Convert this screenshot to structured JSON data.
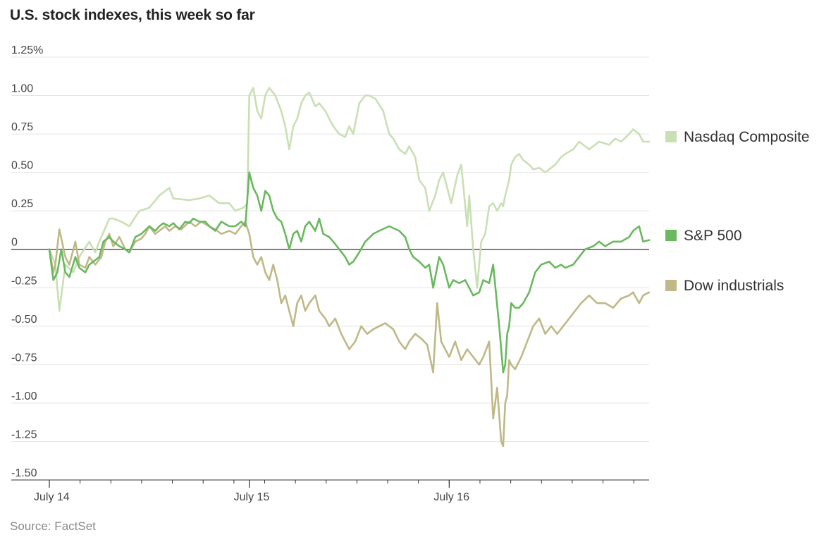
{
  "title": "U.S. stock indexes, this week so far",
  "source": "Source: FactSet",
  "colors": {
    "nasdaq": "#c9dfb4",
    "sp500": "#6ab85f",
    "dow": "#bfb887",
    "grid": "#e4e4e4",
    "zero": "#333333",
    "axis": "#333333"
  },
  "chart_data": {
    "type": "line",
    "title": "U.S. stock indexes, this week so far",
    "xlabel": "",
    "ylabel": "",
    "ylim": [
      -1.5,
      1.25
    ],
    "xlim": [
      0,
      3
    ],
    "yticks": [
      1.25,
      1.0,
      0.75,
      0.5,
      0.25,
      0,
      -0.25,
      -0.5,
      -0.75,
      -1.0,
      -1.25,
      -1.5
    ],
    "ytick_labels": [
      "1.25%",
      "1.00",
      "0.75",
      "0.50",
      "0.25",
      "0",
      "-0.25",
      "-0.50",
      "-0.75",
      "-1.00",
      "-1.25",
      "-1.50"
    ],
    "xtick_labels": [
      {
        "x": 0,
        "label": "July 14"
      },
      {
        "x": 1,
        "label": "July 15"
      },
      {
        "x": 2,
        "label": "July 16"
      }
    ],
    "minor_ticks_per_day": 6.5,
    "series": [
      {
        "name": "Nasdaq Composite",
        "key": "nasdaq",
        "x": [
          0,
          0.03,
          0.05,
          0.08,
          0.12,
          0.15,
          0.2,
          0.23,
          0.25,
          0.3,
          0.32,
          0.36,
          0.4,
          0.45,
          0.5,
          0.55,
          0.6,
          0.62,
          0.7,
          0.75,
          0.8,
          0.85,
          0.9,
          0.93,
          0.97,
          0.99,
          1.0,
          1.02,
          1.04,
          1.06,
          1.08,
          1.1,
          1.13,
          1.16,
          1.18,
          1.2,
          1.22,
          1.24,
          1.26,
          1.28,
          1.3,
          1.33,
          1.35,
          1.38,
          1.4,
          1.42,
          1.45,
          1.48,
          1.5,
          1.52,
          1.55,
          1.58,
          1.6,
          1.63,
          1.67,
          1.7,
          1.72,
          1.75,
          1.78,
          1.8,
          1.83,
          1.85,
          1.88,
          1.9,
          1.93,
          1.95,
          1.97,
          1.99,
          2.01,
          2.04,
          2.06,
          2.09,
          2.1,
          2.12,
          2.14,
          2.16,
          2.18,
          2.2,
          2.22,
          2.24,
          2.26,
          2.27,
          2.28,
          2.3,
          2.31,
          2.33,
          2.35,
          2.37,
          2.4,
          2.42,
          2.45,
          2.48,
          2.5,
          2.53,
          2.56,
          2.58,
          2.62,
          2.65,
          2.7,
          2.75,
          2.8,
          2.83,
          2.86,
          2.9,
          2.92,
          2.95,
          2.97,
          3.0
        ],
        "values": [
          0.0,
          -0.1,
          -0.4,
          -0.1,
          -0.15,
          -0.05,
          0.05,
          -0.02,
          0.05,
          0.2,
          0.2,
          0.18,
          0.15,
          0.25,
          0.27,
          0.35,
          0.4,
          0.33,
          0.32,
          0.33,
          0.35,
          0.3,
          0.3,
          0.25,
          0.27,
          0.3,
          1.0,
          1.05,
          0.9,
          0.85,
          1.0,
          1.05,
          1.0,
          0.9,
          0.8,
          0.65,
          0.8,
          0.85,
          0.95,
          1.0,
          1.02,
          0.93,
          0.95,
          0.9,
          0.85,
          0.8,
          0.75,
          0.73,
          0.8,
          0.75,
          0.95,
          1.0,
          1.0,
          0.98,
          0.9,
          0.75,
          0.72,
          0.65,
          0.62,
          0.67,
          0.6,
          0.45,
          0.4,
          0.25,
          0.35,
          0.45,
          0.5,
          0.4,
          0.3,
          0.48,
          0.55,
          0.15,
          0.35,
          0.0,
          -0.25,
          0.05,
          0.1,
          0.28,
          0.3,
          0.25,
          0.3,
          0.28,
          0.35,
          0.45,
          0.55,
          0.6,
          0.62,
          0.58,
          0.55,
          0.52,
          0.53,
          0.5,
          0.52,
          0.55,
          0.6,
          0.62,
          0.65,
          0.7,
          0.65,
          0.7,
          0.68,
          0.72,
          0.7,
          0.75,
          0.78,
          0.75,
          0.7,
          0.7
        ]
      },
      {
        "name": "S&P 500",
        "key": "sp500",
        "x": [
          0,
          0.02,
          0.04,
          0.06,
          0.08,
          0.1,
          0.13,
          0.15,
          0.18,
          0.2,
          0.22,
          0.25,
          0.27,
          0.3,
          0.32,
          0.35,
          0.38,
          0.4,
          0.43,
          0.46,
          0.5,
          0.53,
          0.55,
          0.57,
          0.6,
          0.62,
          0.65,
          0.68,
          0.7,
          0.72,
          0.75,
          0.78,
          0.8,
          0.83,
          0.86,
          0.9,
          0.93,
          0.96,
          0.98,
          1.0,
          1.02,
          1.04,
          1.06,
          1.08,
          1.1,
          1.12,
          1.14,
          1.16,
          1.18,
          1.2,
          1.22,
          1.24,
          1.26,
          1.28,
          1.3,
          1.33,
          1.35,
          1.37,
          1.4,
          1.42,
          1.45,
          1.48,
          1.5,
          1.52,
          1.55,
          1.58,
          1.62,
          1.65,
          1.7,
          1.75,
          1.78,
          1.8,
          1.82,
          1.85,
          1.88,
          1.9,
          1.92,
          1.95,
          1.97,
          2.0,
          2.02,
          2.05,
          2.08,
          2.1,
          2.12,
          2.15,
          2.17,
          2.2,
          2.22,
          2.25,
          2.26,
          2.27,
          2.28,
          2.29,
          2.3,
          2.31,
          2.33,
          2.35,
          2.37,
          2.4,
          2.43,
          2.46,
          2.5,
          2.53,
          2.56,
          2.58,
          2.62,
          2.65,
          2.68,
          2.72,
          2.75,
          2.78,
          2.82,
          2.86,
          2.9,
          2.92,
          2.95,
          2.97,
          3.0
        ],
        "values": [
          0.0,
          -0.2,
          -0.15,
          0.0,
          -0.15,
          -0.18,
          -0.05,
          -0.12,
          -0.15,
          -0.1,
          -0.08,
          -0.05,
          0.05,
          0.08,
          0.05,
          0.02,
          0.0,
          -0.02,
          0.08,
          0.1,
          0.15,
          0.12,
          0.15,
          0.17,
          0.15,
          0.17,
          0.13,
          0.18,
          0.17,
          0.2,
          0.18,
          0.18,
          0.15,
          0.12,
          0.18,
          0.15,
          0.15,
          0.18,
          0.15,
          0.5,
          0.4,
          0.35,
          0.25,
          0.38,
          0.35,
          0.25,
          0.2,
          0.18,
          0.1,
          0.0,
          0.1,
          0.12,
          0.05,
          0.15,
          0.18,
          0.12,
          0.2,
          0.1,
          0.08,
          0.05,
          0.0,
          -0.05,
          -0.1,
          -0.08,
          -0.02,
          0.05,
          0.1,
          0.12,
          0.15,
          0.12,
          0.08,
          0.0,
          -0.05,
          -0.08,
          -0.12,
          -0.1,
          -0.25,
          -0.05,
          -0.1,
          -0.25,
          -0.2,
          -0.22,
          -0.2,
          -0.25,
          -0.3,
          -0.28,
          -0.2,
          -0.22,
          -0.1,
          -0.5,
          -0.65,
          -0.8,
          -0.75,
          -0.55,
          -0.5,
          -0.35,
          -0.38,
          -0.38,
          -0.35,
          -0.28,
          -0.15,
          -0.1,
          -0.08,
          -0.12,
          -0.1,
          -0.12,
          -0.1,
          -0.05,
          0.0,
          0.02,
          0.05,
          0.02,
          0.05,
          0.05,
          0.08,
          0.12,
          0.15,
          0.05,
          0.06
        ]
      },
      {
        "name": "Dow industrials",
        "key": "dow",
        "x": [
          0,
          0.02,
          0.03,
          0.05,
          0.08,
          0.1,
          0.13,
          0.15,
          0.18,
          0.2,
          0.23,
          0.26,
          0.28,
          0.3,
          0.32,
          0.35,
          0.38,
          0.4,
          0.43,
          0.46,
          0.48,
          0.5,
          0.53,
          0.55,
          0.58,
          0.6,
          0.63,
          0.66,
          0.7,
          0.73,
          0.76,
          0.8,
          0.83,
          0.86,
          0.9,
          0.93,
          0.96,
          0.98,
          1.0,
          1.02,
          1.04,
          1.06,
          1.08,
          1.1,
          1.12,
          1.14,
          1.16,
          1.18,
          1.2,
          1.22,
          1.24,
          1.26,
          1.28,
          1.3,
          1.33,
          1.35,
          1.38,
          1.4,
          1.43,
          1.46,
          1.48,
          1.5,
          1.53,
          1.56,
          1.59,
          1.62,
          1.65,
          1.68,
          1.72,
          1.75,
          1.78,
          1.8,
          1.83,
          1.86,
          1.89,
          1.92,
          1.94,
          1.96,
          1.98,
          2.0,
          2.03,
          2.06,
          2.09,
          2.12,
          2.15,
          2.17,
          2.2,
          2.22,
          2.24,
          2.26,
          2.27,
          2.28,
          2.29,
          2.3,
          2.31,
          2.33,
          2.36,
          2.39,
          2.42,
          2.45,
          2.48,
          2.51,
          2.54,
          2.57,
          2.6,
          2.63,
          2.66,
          2.7,
          2.74,
          2.78,
          2.82,
          2.86,
          2.9,
          2.92,
          2.95,
          2.97,
          3.0
        ],
        "values": [
          0.0,
          -0.15,
          -0.1,
          0.13,
          -0.05,
          -0.1,
          0.05,
          -0.1,
          -0.12,
          -0.05,
          -0.1,
          -0.05,
          0.05,
          0.1,
          0.02,
          0.08,
          0.0,
          -0.02,
          0.05,
          0.07,
          0.1,
          0.15,
          0.1,
          0.12,
          0.15,
          0.12,
          0.15,
          0.13,
          0.18,
          0.15,
          0.18,
          0.15,
          0.13,
          0.1,
          0.12,
          0.1,
          0.15,
          0.18,
          0.1,
          -0.05,
          -0.1,
          -0.05,
          -0.15,
          -0.2,
          -0.1,
          -0.2,
          -0.35,
          -0.3,
          -0.4,
          -0.5,
          -0.35,
          -0.3,
          -0.4,
          -0.35,
          -0.3,
          -0.4,
          -0.45,
          -0.5,
          -0.45,
          -0.55,
          -0.6,
          -0.65,
          -0.6,
          -0.5,
          -0.55,
          -0.52,
          -0.5,
          -0.48,
          -0.52,
          -0.6,
          -0.65,
          -0.6,
          -0.55,
          -0.58,
          -0.62,
          -0.8,
          -0.35,
          -0.6,
          -0.65,
          -0.7,
          -0.6,
          -0.72,
          -0.65,
          -0.7,
          -0.75,
          -0.7,
          -0.6,
          -1.1,
          -0.9,
          -1.25,
          -1.28,
          -1.0,
          -0.95,
          -0.72,
          -0.75,
          -0.78,
          -0.7,
          -0.6,
          -0.5,
          -0.45,
          -0.55,
          -0.5,
          -0.55,
          -0.5,
          -0.45,
          -0.4,
          -0.35,
          -0.3,
          -0.35,
          -0.35,
          -0.38,
          -0.32,
          -0.3,
          -0.28,
          -0.35,
          -0.3,
          -0.28
        ]
      }
    ],
    "legend": {
      "position": "right"
    }
  }
}
